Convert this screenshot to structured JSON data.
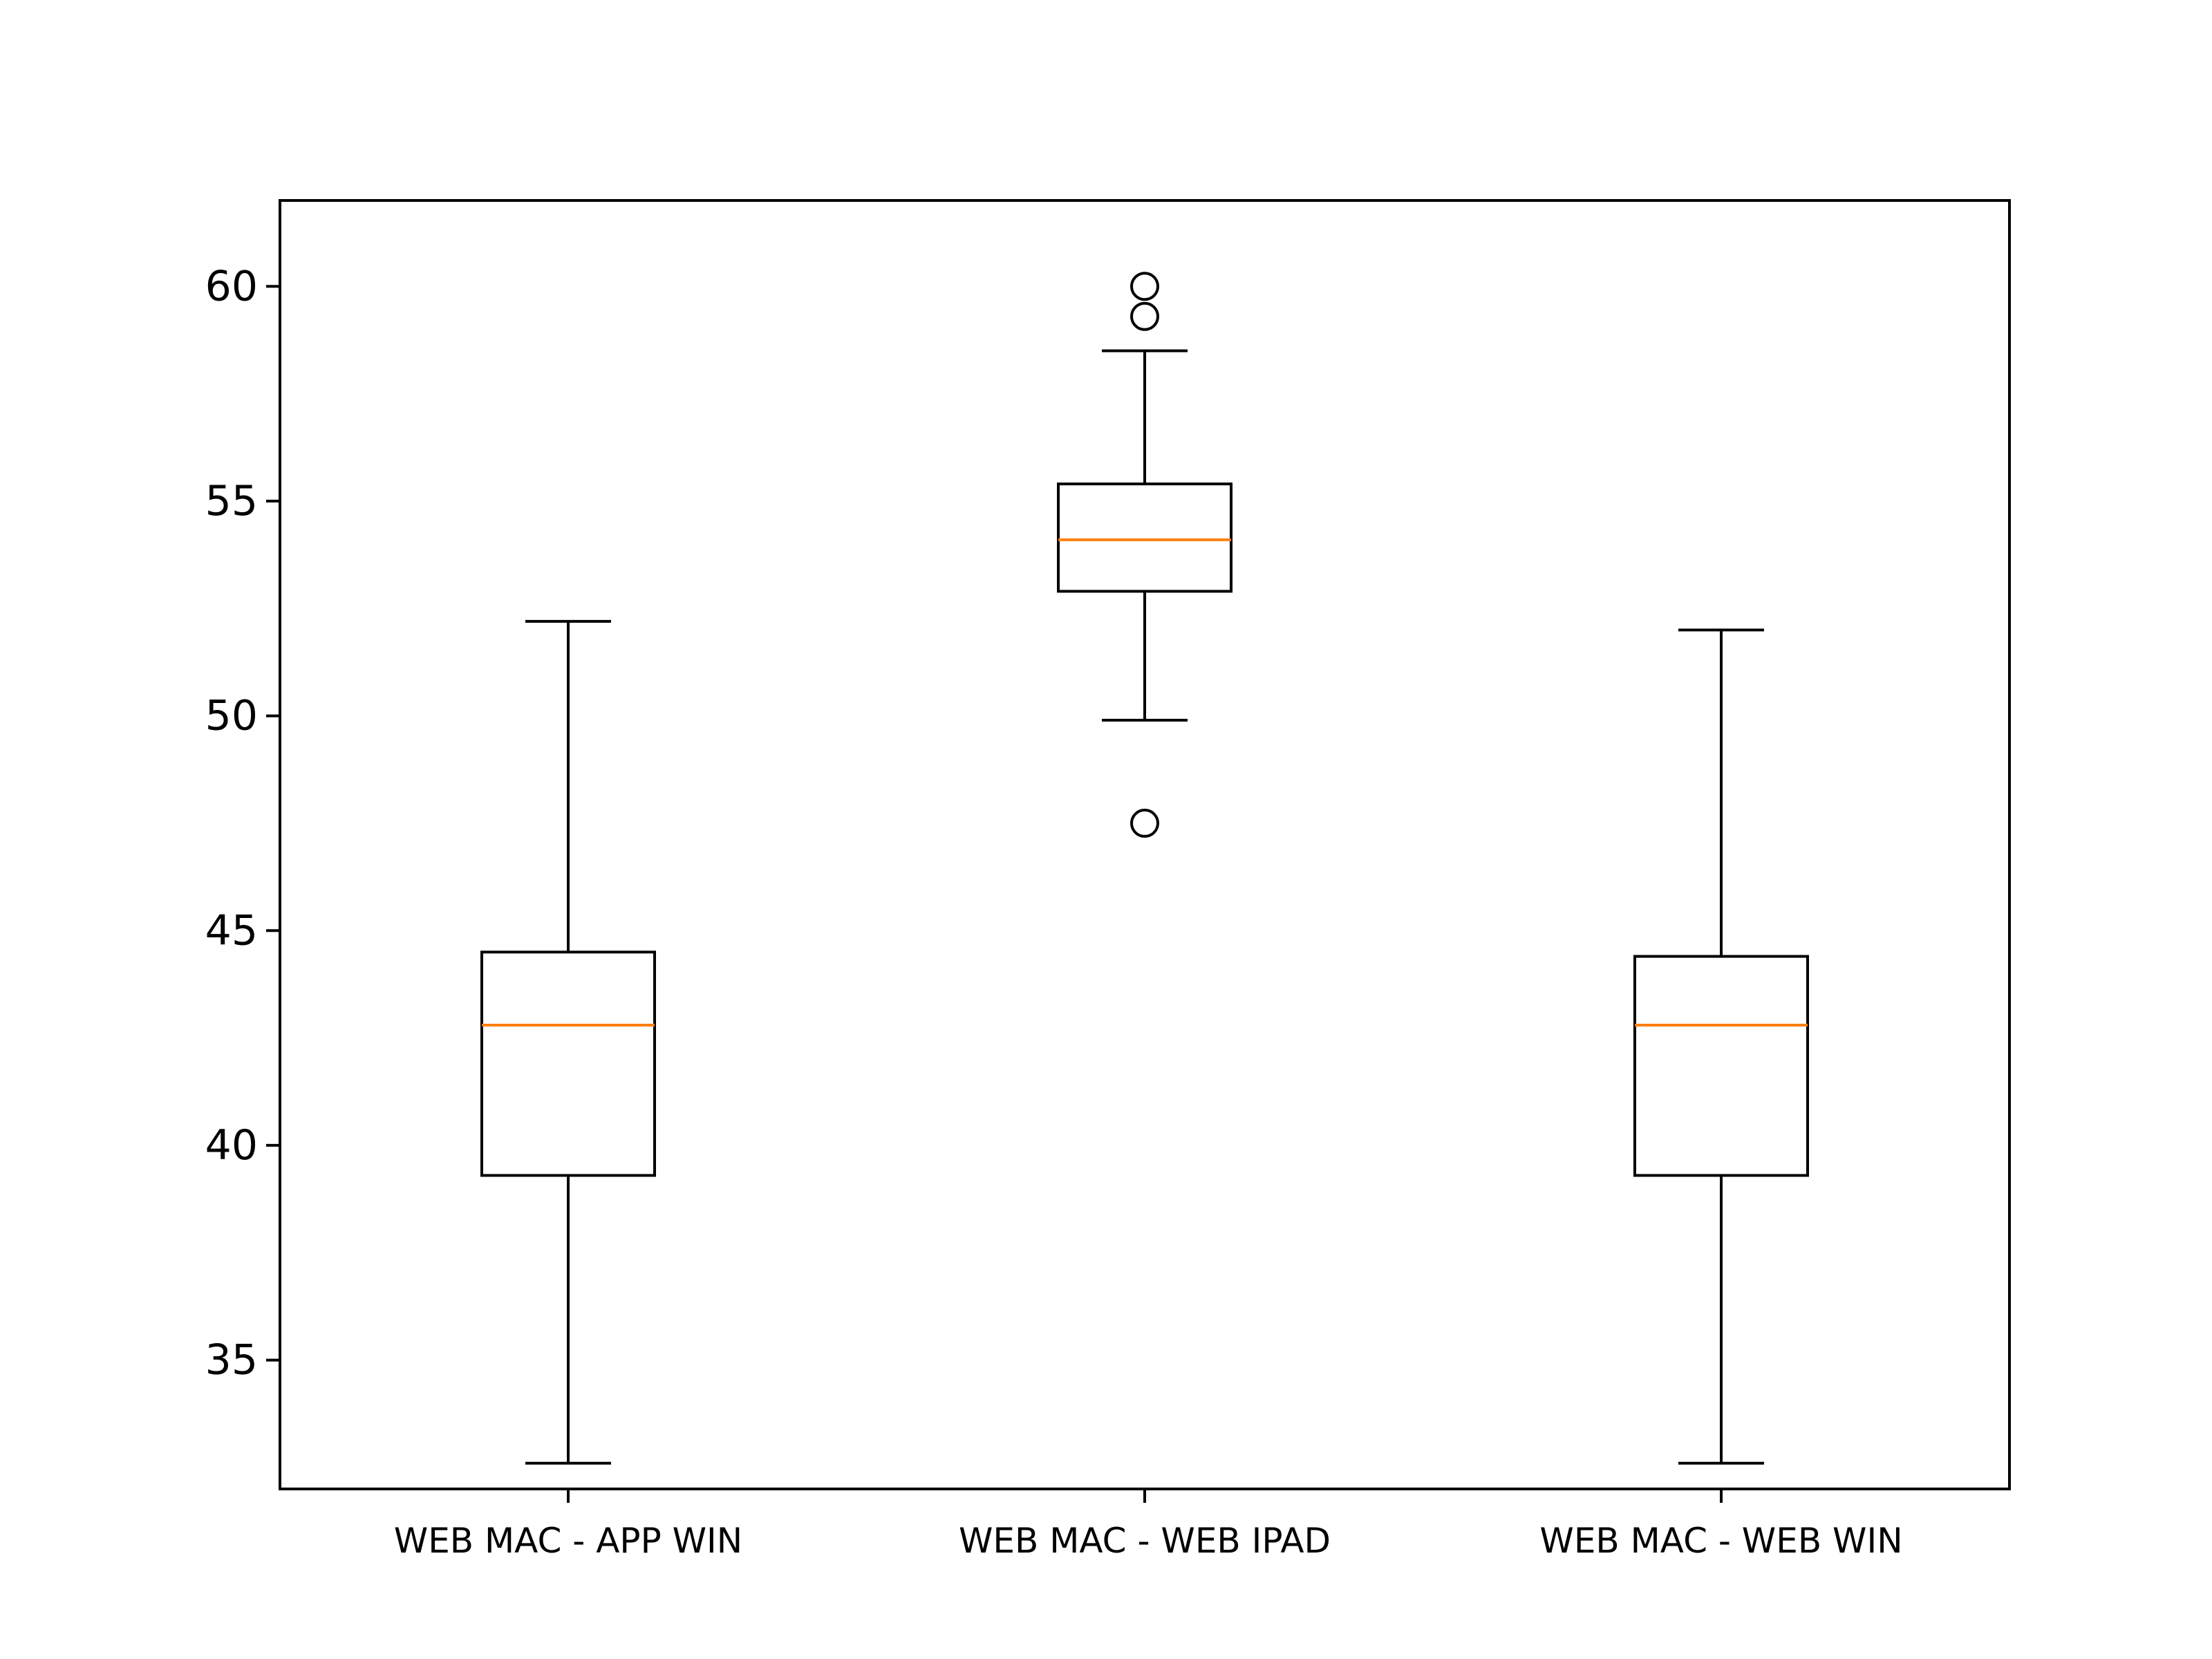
{
  "chart_data": {
    "type": "boxplot",
    "title": "",
    "xlabel": "",
    "ylabel": "",
    "ylim": [
      32.0,
      62.0
    ],
    "yticks": [
      "35",
      "40",
      "45",
      "50",
      "55",
      "60"
    ],
    "grid": false,
    "legend": "none",
    "colors": {
      "box": "#000000",
      "median": "#ff7f0e",
      "background": "#ffffff"
    },
    "categories": [
      "WEB MAC - APP WIN",
      "WEB MAC - WEB IPAD",
      "WEB MAC - WEB WIN"
    ],
    "boxes": [
      {
        "category": "WEB MAC - APP WIN",
        "whisker_low": 32.6,
        "q1": 39.3,
        "median": 42.8,
        "q3": 44.5,
        "whisker_high": 52.2,
        "outliers": []
      },
      {
        "category": "WEB MAC - WEB IPAD",
        "whisker_low": 49.9,
        "q1": 52.9,
        "median": 54.1,
        "q3": 55.4,
        "whisker_high": 58.5,
        "outliers": [
          47.5,
          59.3,
          60.0
        ]
      },
      {
        "category": "WEB MAC - WEB WIN",
        "whisker_low": 32.6,
        "q1": 39.3,
        "median": 42.8,
        "q3": 44.4,
        "whisker_high": 52.0,
        "outliers": []
      }
    ]
  }
}
